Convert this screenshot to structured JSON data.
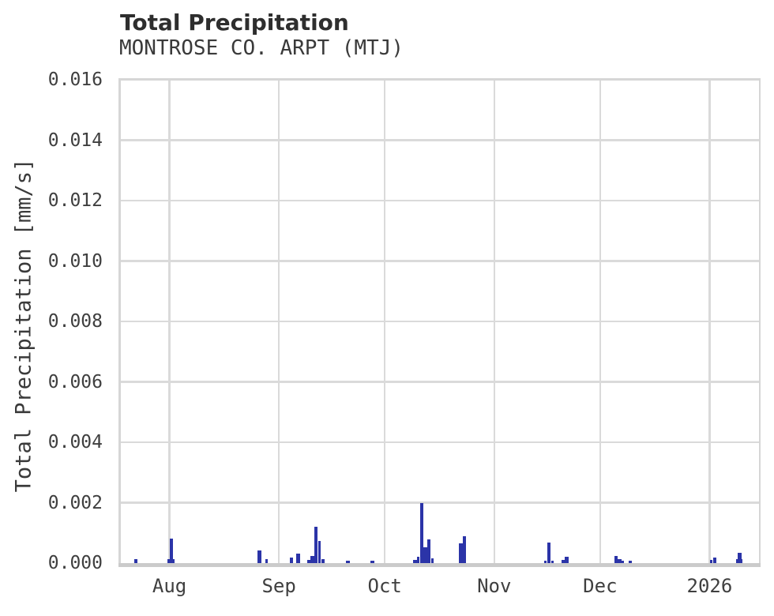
{
  "page": {
    "background": "#ffffff"
  },
  "chart_data": {
    "type": "bar",
    "title": "Total Precipitation",
    "subtitle": "MONTROSE CO. ARPT (MTJ)",
    "ylabel": "Total Precipitation [mm/s]",
    "ylim": [
      0,
      0.016
    ],
    "yticks": [
      0.0,
      0.002,
      0.004,
      0.006,
      0.008,
      0.01,
      0.012,
      0.014,
      0.016
    ],
    "ytick_labels": [
      "0.000",
      "0.002",
      "0.004",
      "0.006",
      "0.008",
      "0.010",
      "0.012",
      "0.014",
      "0.016"
    ],
    "x_range": [
      "2025-07-18",
      "2026-01-15"
    ],
    "xticks": [
      {
        "label": "Aug",
        "date": "2025-08-01"
      },
      {
        "label": "Sep",
        "date": "2025-09-01"
      },
      {
        "label": "Oct",
        "date": "2025-10-01"
      },
      {
        "label": "Nov",
        "date": "2025-11-01"
      },
      {
        "label": "Dec",
        "date": "2025-12-01"
      },
      {
        "label": "2026",
        "date": "2026-01-01"
      }
    ],
    "grid": true,
    "legend": false,
    "colors": {
      "bar": "#2b34a8",
      "grid": "#dadada",
      "spine": "#d6d6d6",
      "baseline": "#cbcbcb",
      "text": "#3a3a3a"
    },
    "bars": [
      {
        "date": "2025-07-22",
        "value": 0.00013
      },
      {
        "date": "2025-08-01",
        "value": 0.00013,
        "wd": 2.0
      },
      {
        "date": "2025-08-01",
        "value": 0.00081
      },
      {
        "date": "2025-08-26",
        "value": 0.00042,
        "wd": 1.1
      },
      {
        "date": "2025-08-28",
        "value": 0.00013,
        "wd": 0.8
      },
      {
        "date": "2025-09-04",
        "value": 0.00018
      },
      {
        "date": "2025-09-06",
        "value": 0.00031
      },
      {
        "date": "2025-09-09",
        "value": 0.0001,
        "wd": 0.8
      },
      {
        "date": "2025-09-10",
        "value": 0.00024
      },
      {
        "date": "2025-09-11",
        "value": 0.0012
      },
      {
        "date": "2025-09-12",
        "value": 0.00073,
        "wd": 0.8
      },
      {
        "date": "2025-09-13",
        "value": 0.00013,
        "wd": 0.7
      },
      {
        "date": "2025-09-20",
        "value": 8e-05
      },
      {
        "date": "2025-09-27",
        "value": 8e-05
      },
      {
        "date": "2025-10-09",
        "value": 0.0001,
        "wd": 1.2
      },
      {
        "date": "2025-10-10",
        "value": 0.00021,
        "wd": 0.7
      },
      {
        "date": "2025-10-11",
        "value": 0.002
      },
      {
        "date": "2025-10-12",
        "value": 0.00052
      },
      {
        "date": "2025-10-13",
        "value": 0.00078
      },
      {
        "date": "2025-10-14",
        "value": 0.00016,
        "wd": 0.7
      },
      {
        "date": "2025-10-22",
        "value": 0.00065
      },
      {
        "date": "2025-10-23",
        "value": 0.00089
      },
      {
        "date": "2025-11-15",
        "value": 8e-05,
        "wd": 0.7
      },
      {
        "date": "2025-11-16",
        "value": 0.00068
      },
      {
        "date": "2025-11-17",
        "value": 8e-05,
        "wd": 0.7
      },
      {
        "date": "2025-11-20",
        "value": 0.0001
      },
      {
        "date": "2025-11-21",
        "value": 0.00021
      },
      {
        "date": "2025-12-05",
        "value": 0.00024
      },
      {
        "date": "2025-12-06",
        "value": 0.00013
      },
      {
        "date": "2025-12-07",
        "value": 8e-05,
        "wd": 0.7
      },
      {
        "date": "2025-12-09",
        "value": 8e-05
      },
      {
        "date": "2026-01-01",
        "value": 0.0001,
        "wd": 0.7
      },
      {
        "date": "2026-01-02",
        "value": 0.00018
      },
      {
        "date": "2026-01-09",
        "value": 0.00013,
        "wd": 1.8
      },
      {
        "date": "2026-01-09",
        "value": 0.00034
      }
    ]
  }
}
